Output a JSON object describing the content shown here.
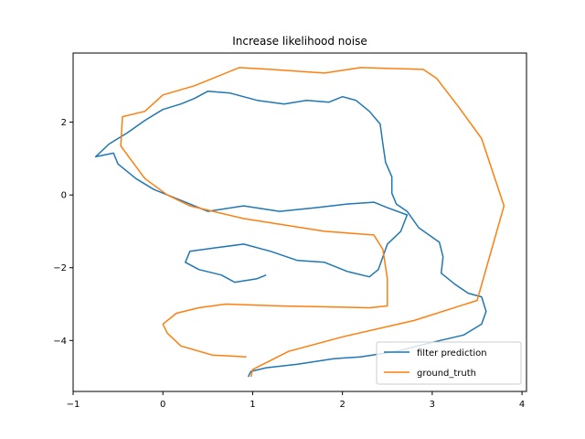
{
  "chart_data": {
    "type": "line",
    "title": "Increase likelihood noise",
    "xlabel": "",
    "ylabel": "",
    "xlim": [
      -1,
      4.05
    ],
    "ylim": [
      -5.4,
      3.9
    ],
    "xticks": [
      -1,
      0,
      1,
      2,
      3,
      4
    ],
    "xtick_labels": [
      "−1",
      "0",
      "1",
      "2",
      "3",
      "4"
    ],
    "yticks": [
      -4,
      -2,
      0,
      2
    ],
    "ytick_labels": [
      "−4",
      "−2",
      "0",
      "2"
    ],
    "grid": false,
    "legend": "lower-right",
    "series": [
      {
        "name": "filter prediction",
        "color": "#1f77b4",
        "points": [
          [
            0.95,
            -5.0
          ],
          [
            0.98,
            -4.85
          ],
          [
            1.15,
            -4.75
          ],
          [
            1.5,
            -4.65
          ],
          [
            1.9,
            -4.5
          ],
          [
            2.2,
            -4.45
          ],
          [
            2.6,
            -4.3
          ],
          [
            3.0,
            -4.05
          ],
          [
            3.35,
            -3.85
          ],
          [
            3.55,
            -3.55
          ],
          [
            3.6,
            -3.2
          ],
          [
            3.55,
            -2.8
          ],
          [
            3.4,
            -2.7
          ],
          [
            3.25,
            -2.45
          ],
          [
            3.1,
            -2.15
          ],
          [
            3.12,
            -1.7
          ],
          [
            3.08,
            -1.3
          ],
          [
            2.85,
            -0.9
          ],
          [
            2.72,
            -0.45
          ],
          [
            2.6,
            -0.25
          ],
          [
            2.55,
            0.05
          ],
          [
            2.55,
            0.5
          ],
          [
            2.48,
            0.9
          ],
          [
            2.45,
            1.4
          ],
          [
            2.42,
            1.95
          ],
          [
            2.3,
            2.3
          ],
          [
            2.15,
            2.6
          ],
          [
            2.0,
            2.7
          ],
          [
            1.85,
            2.55
          ],
          [
            1.6,
            2.6
          ],
          [
            1.35,
            2.5
          ],
          [
            1.05,
            2.6
          ],
          [
            0.75,
            2.8
          ],
          [
            0.5,
            2.85
          ],
          [
            0.35,
            2.65
          ],
          [
            0.2,
            2.5
          ],
          [
            0.0,
            2.35
          ],
          [
            -0.2,
            2.05
          ],
          [
            -0.4,
            1.7
          ],
          [
            -0.6,
            1.4
          ],
          [
            -0.75,
            1.05
          ],
          [
            -0.55,
            1.15
          ],
          [
            -0.5,
            0.85
          ],
          [
            -0.3,
            0.45
          ],
          [
            -0.1,
            0.15
          ],
          [
            0.2,
            -0.15
          ],
          [
            0.5,
            -0.45
          ],
          [
            0.9,
            -0.3
          ],
          [
            1.3,
            -0.45
          ],
          [
            1.7,
            -0.35
          ],
          [
            2.05,
            -0.25
          ],
          [
            2.35,
            -0.2
          ],
          [
            2.5,
            -0.35
          ],
          [
            2.72,
            -0.55
          ],
          [
            2.65,
            -1.0
          ],
          [
            2.5,
            -1.35
          ],
          [
            2.45,
            -1.7
          ],
          [
            2.4,
            -2.05
          ],
          [
            2.3,
            -2.25
          ],
          [
            2.05,
            -2.1
          ],
          [
            1.8,
            -1.85
          ],
          [
            1.5,
            -1.8
          ],
          [
            1.2,
            -1.55
          ],
          [
            0.9,
            -1.35
          ],
          [
            0.6,
            -1.45
          ],
          [
            0.3,
            -1.55
          ],
          [
            0.25,
            -1.85
          ],
          [
            0.4,
            -2.05
          ],
          [
            0.65,
            -2.2
          ],
          [
            0.8,
            -2.4
          ],
          [
            1.05,
            -2.3
          ],
          [
            1.15,
            -2.2
          ]
        ]
      },
      {
        "name": "ground_truth",
        "color": "#ff7f0e",
        "points": [
          [
            0.93,
            -4.45
          ],
          [
            0.55,
            -4.4
          ],
          [
            0.2,
            -4.15
          ],
          [
            0.05,
            -3.8
          ],
          [
            0.0,
            -3.55
          ],
          [
            0.15,
            -3.25
          ],
          [
            0.4,
            -3.1
          ],
          [
            0.7,
            -3.0
          ],
          [
            1.3,
            -3.05
          ],
          [
            2.3,
            -3.1
          ],
          [
            2.5,
            -3.05
          ],
          [
            2.5,
            -2.3
          ],
          [
            2.45,
            -1.5
          ],
          [
            2.35,
            -1.1
          ],
          [
            1.8,
            -1.0
          ],
          [
            0.9,
            -0.65
          ],
          [
            0.3,
            -0.3
          ],
          [
            0.05,
            0.0
          ],
          [
            -0.2,
            0.45
          ],
          [
            -0.35,
            0.95
          ],
          [
            -0.47,
            1.35
          ],
          [
            -0.45,
            2.15
          ],
          [
            -0.2,
            2.3
          ],
          [
            0.0,
            2.75
          ],
          [
            0.35,
            3.0
          ],
          [
            0.6,
            3.25
          ],
          [
            0.85,
            3.5
          ],
          [
            1.2,
            3.45
          ],
          [
            1.8,
            3.35
          ],
          [
            2.2,
            3.5
          ],
          [
            2.9,
            3.45
          ],
          [
            3.05,
            3.2
          ],
          [
            3.3,
            2.4
          ],
          [
            3.55,
            1.55
          ],
          [
            3.8,
            -0.3
          ],
          [
            3.5,
            -2.9
          ],
          [
            2.8,
            -3.45
          ],
          [
            2.0,
            -3.9
          ],
          [
            1.4,
            -4.3
          ],
          [
            1.0,
            -4.8
          ],
          [
            0.98,
            -5.0
          ]
        ]
      }
    ]
  }
}
